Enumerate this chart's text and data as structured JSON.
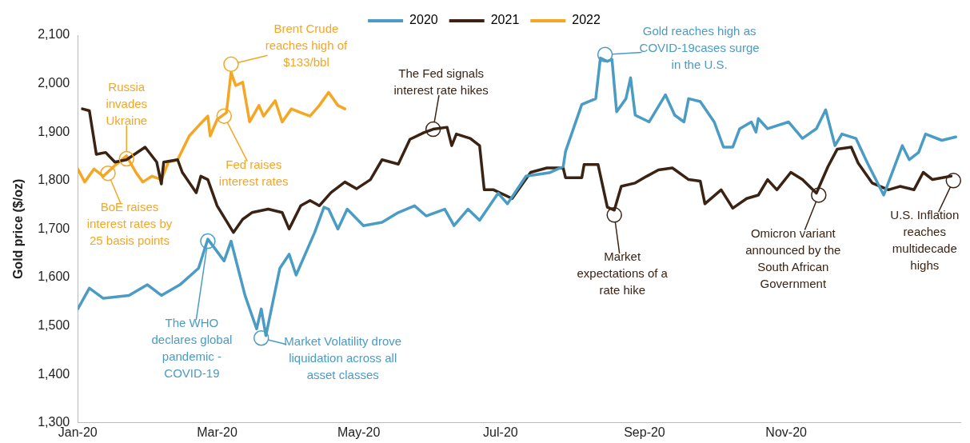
{
  "chart_data": {
    "type": "line",
    "ylabel": "Gold price ($/oz)",
    "legend": "top",
    "grid": false,
    "marker": "none",
    "line_style": "solid",
    "xlim": [
      "2020-01-01",
      "2021-01-15"
    ],
    "xticks": [
      {
        "value": "2020-01-01",
        "label": "Jan-20"
      },
      {
        "value": "2020-03-01",
        "label": "Mar-20"
      },
      {
        "value": "2020-05-01",
        "label": "May-20"
      },
      {
        "value": "2020-07-01",
        "label": "Jul-20"
      },
      {
        "value": "2020-09-01",
        "label": "Sep-20"
      },
      {
        "value": "2020-11-01",
        "label": "Nov-20"
      }
    ],
    "ylim": [
      1300,
      2100
    ],
    "yticks": [
      {
        "value": 1300,
        "label": "1,300"
      },
      {
        "value": 1400,
        "label": "1,400"
      },
      {
        "value": 1500,
        "label": "1,500"
      },
      {
        "value": 1600,
        "label": "1,600"
      },
      {
        "value": 1700,
        "label": "1,700"
      },
      {
        "value": 1800,
        "label": "1,800"
      },
      {
        "value": 1900,
        "label": "1,900"
      },
      {
        "value": 2000,
        "label": "2,000"
      },
      {
        "value": 2100,
        "label": "2,100"
      }
    ],
    "series": [
      {
        "name": "2020",
        "color": "#4a9cc4",
        "x": [
          "2020-01-01",
          "2020-01-06",
          "2020-01-12",
          "2020-01-23",
          "2020-01-31",
          "2020-02-06",
          "2020-02-14",
          "2020-02-22",
          "2020-02-26",
          "2020-02-29",
          "2020-03-04",
          "2020-03-07",
          "2020-03-13",
          "2020-03-18",
          "2020-03-20",
          "2020-03-22",
          "2020-03-28",
          "2020-04-01",
          "2020-04-04",
          "2020-04-09",
          "2020-04-12",
          "2020-04-16",
          "2020-04-18",
          "2020-04-22",
          "2020-04-26",
          "2020-05-03",
          "2020-05-11",
          "2020-05-18",
          "2020-05-25",
          "2020-05-30",
          "2020-06-07",
          "2020-06-11",
          "2020-06-17",
          "2020-06-22",
          "2020-06-30",
          "2020-07-04",
          "2020-07-12",
          "2020-07-22",
          "2020-07-28",
          "2020-07-29",
          "2020-08-05",
          "2020-08-11",
          "2020-08-13",
          "2020-08-16",
          "2020-08-18",
          "2020-08-20",
          "2020-08-24",
          "2020-08-26",
          "2020-08-28",
          "2020-09-03",
          "2020-09-10",
          "2020-09-14",
          "2020-09-18",
          "2020-09-20",
          "2020-09-25",
          "2020-10-01",
          "2020-10-05",
          "2020-10-09",
          "2020-10-12",
          "2020-10-17",
          "2020-10-19",
          "2020-10-20",
          "2020-10-24",
          "2020-11-02",
          "2020-11-08",
          "2020-11-14",
          "2020-11-18",
          "2020-11-22",
          "2020-11-25",
          "2020-12-01",
          "2020-12-06",
          "2020-12-13",
          "2020-12-21",
          "2020-12-24",
          "2020-12-28",
          "2020-12-31",
          "2021-01-07",
          "2021-01-13"
        ],
        "values": [
          1535,
          1578,
          1557,
          1563,
          1585,
          1563,
          1585,
          1619,
          1679,
          1660,
          1634,
          1675,
          1563,
          1494,
          1535,
          1480,
          1619,
          1648,
          1605,
          1660,
          1693,
          1745,
          1741,
          1700,
          1741,
          1707,
          1714,
          1734,
          1748,
          1727,
          1741,
          1707,
          1741,
          1718,
          1774,
          1752,
          1809,
          1816,
          1829,
          1860,
          1957,
          1969,
          2053,
          2046,
          2050,
          1942,
          1969,
          2012,
          1935,
          1921,
          1977,
          1935,
          1921,
          1969,
          1963,
          1921,
          1869,
          1869,
          1907,
          1921,
          1900,
          1928,
          1907,
          1921,
          1887,
          1907,
          1946,
          1872,
          1896,
          1887,
          1836,
          1770,
          1872,
          1843,
          1858,
          1896,
          1883,
          1890
        ]
      },
      {
        "name": "2021",
        "color": "#3b2314",
        "x": [
          "2020-01-03",
          "2020-01-06",
          "2020-01-09",
          "2020-01-13",
          "2020-01-17",
          "2020-01-22",
          "2020-01-30",
          "2020-02-04",
          "2020-02-06",
          "2020-02-07",
          "2020-02-13",
          "2020-02-15",
          "2020-02-21",
          "2020-02-23",
          "2020-02-26",
          "2020-03-01",
          "2020-03-08",
          "2020-03-12",
          "2020-03-16",
          "2020-03-23",
          "2020-03-29",
          "2020-04-01",
          "2020-04-06",
          "2020-04-10",
          "2020-04-14",
          "2020-04-19",
          "2020-04-25",
          "2020-04-30",
          "2020-05-06",
          "2020-05-11",
          "2020-05-18",
          "2020-05-23",
          "2020-05-29",
          "2020-06-02",
          "2020-06-08",
          "2020-06-10",
          "2020-06-12",
          "2020-06-18",
          "2020-06-22",
          "2020-06-24",
          "2020-06-28",
          "2020-07-06",
          "2020-07-14",
          "2020-07-21",
          "2020-07-28",
          "2020-07-29",
          "2020-08-05",
          "2020-08-06",
          "2020-08-12",
          "2020-08-16",
          "2020-08-19",
          "2020-08-22",
          "2020-08-28",
          "2020-09-02",
          "2020-09-07",
          "2020-09-13",
          "2020-09-20",
          "2020-09-25",
          "2020-09-27",
          "2020-10-04",
          "2020-10-09",
          "2020-10-15",
          "2020-10-20",
          "2020-10-24",
          "2020-10-28",
          "2020-11-03",
          "2020-11-08",
          "2020-11-14",
          "2020-11-19",
          "2020-11-23",
          "2020-11-29",
          "2020-12-02",
          "2020-12-08",
          "2020-12-15",
          "2020-12-20",
          "2020-12-26",
          "2020-12-30",
          "2021-01-03",
          "2021-01-11"
        ],
        "values": [
          1948,
          1944,
          1854,
          1858,
          1838,
          1843,
          1869,
          1838,
          1793,
          1838,
          1843,
          1817,
          1775,
          1809,
          1802,
          1748,
          1693,
          1720,
          1734,
          1741,
          1734,
          1700,
          1748,
          1759,
          1748,
          1775,
          1797,
          1783,
          1802,
          1843,
          1834,
          1885,
          1899,
          1906,
          1910,
          1872,
          1896,
          1887,
          1872,
          1781,
          1781,
          1763,
          1817,
          1826,
          1826,
          1806,
          1806,
          1833,
          1833,
          1745,
          1739,
          1788,
          1795,
          1809,
          1822,
          1826,
          1802,
          1799,
          1752,
          1781,
          1743,
          1763,
          1770,
          1802,
          1781,
          1817,
          1802,
          1774,
          1829,
          1865,
          1869,
          1836,
          1795,
          1781,
          1788,
          1781,
          1817,
          1802,
          1809
        ]
      },
      {
        "name": "2022",
        "color": "#f5a623",
        "x": [
          "2020-01-01",
          "2020-01-04",
          "2020-01-08",
          "2020-01-12",
          "2020-01-17",
          "2020-01-22",
          "2020-01-26",
          "2020-01-29",
          "2020-02-02",
          "2020-02-06",
          "2020-02-09",
          "2020-02-13",
          "2020-02-18",
          "2020-02-22",
          "2020-02-26",
          "2020-02-27",
          "2020-03-01",
          "2020-03-05",
          "2020-03-07",
          "2020-03-09",
          "2020-03-12",
          "2020-03-15",
          "2020-03-19",
          "2020-03-21",
          "2020-03-26",
          "2020-03-29",
          "2020-04-02",
          "2020-04-06",
          "2020-04-10",
          "2020-04-14",
          "2020-04-18",
          "2020-04-22",
          "2020-04-25"
        ],
        "values": [
          1824,
          1797,
          1824,
          1809,
          1831,
          1851,
          1817,
          1797,
          1809,
          1802,
          1838,
          1843,
          1892,
          1913,
          1933,
          1892,
          1926,
          1940,
          2023,
          1996,
          2003,
          1921,
          1955,
          1933,
          1965,
          1921,
          1948,
          1940,
          1933,
          1955,
          1982,
          1955,
          1948
        ]
      }
    ],
    "annotations": [
      {
        "text": "Russia invades Ukraine",
        "x": "2020-01-22",
        "y": 1845
      },
      {
        "text": "BoE raises interest rates by 25 basis points",
        "x": "2020-01-14",
        "y": 1815
      },
      {
        "text": "Brent Crude reaches high of $133/bbl",
        "x": "2020-03-07",
        "y": 2040
      },
      {
        "text": "Fed raises interest rates",
        "x": "2020-03-04",
        "y": 1933
      },
      {
        "text": "The WHO declares global pandemic - COVID-19",
        "x": "2020-02-26",
        "y": 1675
      },
      {
        "text": "Market Volatility drove liquidation across all asset classes",
        "x": "2020-03-20",
        "y": 1475
      },
      {
        "text": "The Fed signals interest rate hikes",
        "x": "2020-06-02",
        "y": 1906
      },
      {
        "text": "Gold reaches high as COVID-19cases surge in the U.S.",
        "x": "2020-08-15",
        "y": 2060
      },
      {
        "text": "Market expectations of a rate hike",
        "x": "2020-08-19",
        "y": 1729
      },
      {
        "text": "Omicron variant announced by the South African Government",
        "x": "2020-11-15",
        "y": 1770
      },
      {
        "text": "U.S. Inflation reaches multidecade highs",
        "x": "2021-01-12",
        "y": 1800
      }
    ]
  }
}
